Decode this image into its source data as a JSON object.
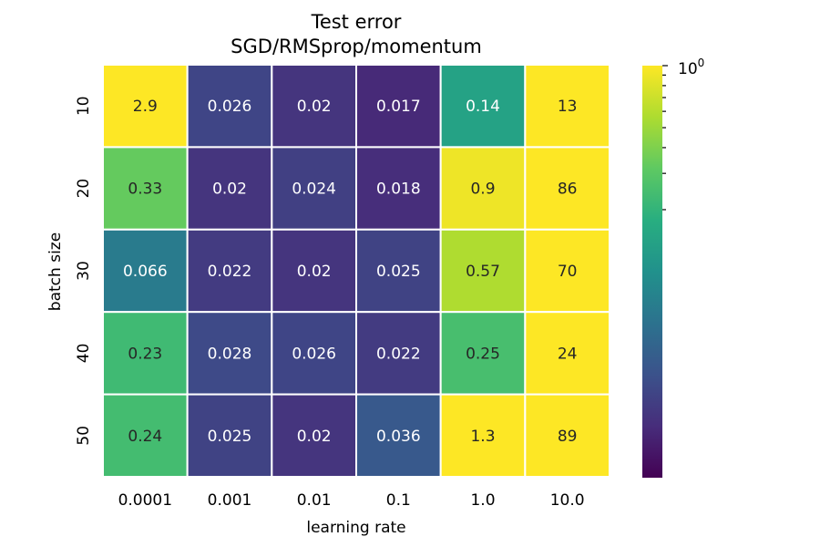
{
  "chart_data": {
    "type": "heatmap",
    "title": "Test error",
    "subtitle": "SGD/RMSprop/momentum",
    "xlabel": "learning rate",
    "ylabel": "batch size",
    "x_categories": [
      "0.0001",
      "0.001",
      "0.01",
      "0.1",
      "1.0",
      "10.0"
    ],
    "y_categories": [
      "10",
      "20",
      "30",
      "40",
      "50"
    ],
    "cell_labels": [
      [
        "2.9",
        "0.026",
        "0.02",
        "0.017",
        "0.14",
        "13"
      ],
      [
        "0.33",
        "0.02",
        "0.024",
        "0.018",
        "0.9",
        "86"
      ],
      [
        "0.066",
        "0.022",
        "0.02",
        "0.025",
        "0.57",
        "70"
      ],
      [
        "0.23",
        "0.028",
        "0.026",
        "0.022",
        "0.25",
        "24"
      ],
      [
        "0.24",
        "0.025",
        "0.02",
        "0.036",
        "1.3",
        "89"
      ]
    ],
    "values": [
      [
        2.9,
        0.026,
        0.02,
        0.017,
        0.14,
        13
      ],
      [
        0.33,
        0.02,
        0.024,
        0.018,
        0.9,
        86
      ],
      [
        0.066,
        0.022,
        0.02,
        0.025,
        0.57,
        70
      ],
      [
        0.23,
        0.028,
        0.026,
        0.022,
        0.25,
        24
      ],
      [
        0.24,
        0.025,
        0.02,
        0.036,
        1.3,
        89
      ]
    ],
    "color_scale": "log",
    "colormap": "viridis",
    "vmin": 0.01,
    "vmax": 1.0,
    "colorbar": {
      "tick_label": "10^0",
      "position": "right"
    },
    "cell_separator_color": "#ffffff",
    "annotation_dark_text_color": "#262626",
    "annotation_light_text_color": "#ffffff"
  }
}
